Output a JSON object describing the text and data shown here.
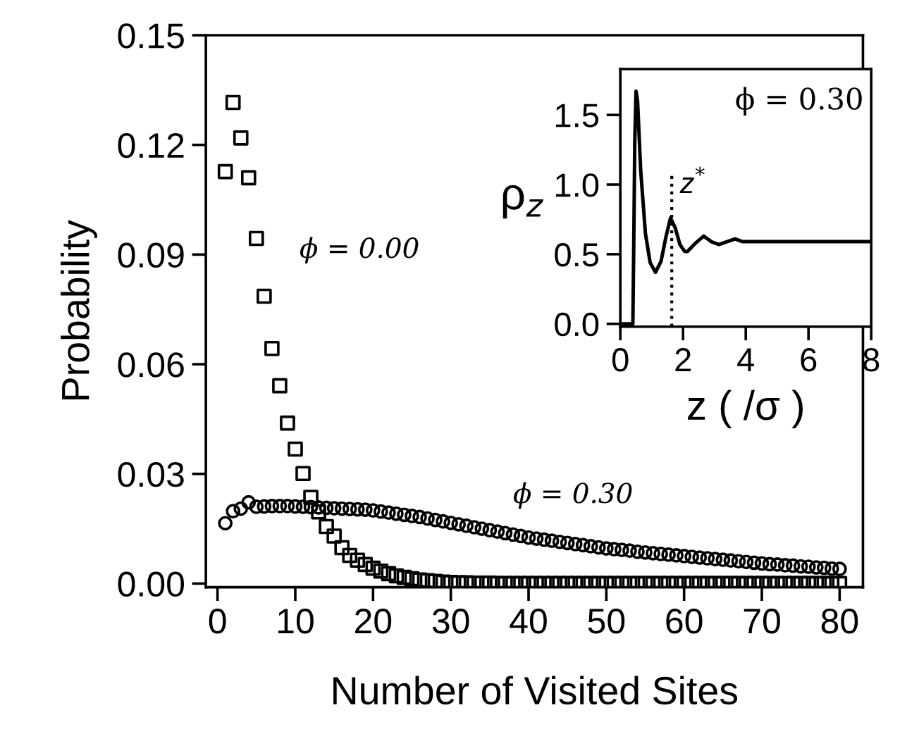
{
  "chart_data": [
    {
      "type": "scatter",
      "xlabel": "Number of Visited Sites",
      "ylabel": "Probability",
      "xlim": [
        -1.5,
        83
      ],
      "xticks": [
        0,
        10,
        20,
        30,
        40,
        50,
        60,
        70,
        80
      ],
      "ylim": [
        -0.001,
        0.15
      ],
      "yticks": [
        {
          "value": 0,
          "label": "0.00"
        },
        {
          "value": 0.03,
          "label": "0.03"
        },
        {
          "value": 0.06,
          "label": "0.06"
        },
        {
          "value": 0.09,
          "label": "0.09"
        },
        {
          "value": 0.12,
          "label": "0.12"
        },
        {
          "value": 0.15,
          "label": "0.15"
        }
      ],
      "grid": false,
      "legend": false,
      "x": [
        1,
        2,
        3,
        4,
        5,
        6,
        7,
        8,
        9,
        10,
        11,
        12,
        13,
        14,
        15,
        16,
        17,
        18,
        19,
        20,
        21,
        22,
        23,
        24,
        25,
        26,
        27,
        28,
        29,
        30,
        31,
        32,
        33,
        34,
        35,
        36,
        37,
        38,
        39,
        40,
        41,
        42,
        43,
        44,
        45,
        46,
        47,
        48,
        49,
        50,
        51,
        52,
        53,
        54,
        55,
        56,
        57,
        58,
        59,
        60,
        61,
        62,
        63,
        64,
        65,
        66,
        67,
        68,
        69,
        70,
        71,
        72,
        73,
        74,
        75,
        76,
        77,
        78,
        79,
        80
      ],
      "series": [
        {
          "name": "ϕ = 0.00",
          "color": "#000000",
          "marker": "square",
          "values": [
            0.1127,
            0.1316,
            0.1219,
            0.111,
            0.0944,
            0.0786,
            0.0643,
            0.0541,
            0.0439,
            0.0368,
            0.0301,
            0.0236,
            0.0196,
            0.0156,
            0.013,
            0.0098,
            0.0077,
            0.0064,
            0.0052,
            0.0042,
            0.0034,
            0.0027,
            0.0021,
            0.0017,
            0.0013,
            0.001,
            0.0008,
            0.0006,
            0.0004,
            0.0003,
            0.0002,
            0.0002,
            0.0001,
            0.0001,
            0.0001,
            0,
            0,
            0,
            0,
            0,
            0,
            0,
            0,
            0,
            0,
            0,
            0,
            0,
            0,
            0,
            0,
            0,
            0,
            0,
            0,
            0,
            0,
            0,
            0,
            0,
            0,
            0,
            0,
            0,
            0,
            0,
            0,
            0,
            0,
            0,
            0,
            0,
            0,
            0,
            0,
            0,
            0,
            0,
            0,
            0
          ]
        },
        {
          "name": "ϕ = 0.30",
          "color": "#000000",
          "marker": "circle",
          "values": [
            0.0165,
            0.0198,
            0.0205,
            0.0222,
            0.021,
            0.0211,
            0.0212,
            0.0212,
            0.0212,
            0.0211,
            0.021,
            0.0209,
            0.0208,
            0.0207,
            0.0206,
            0.0205,
            0.0204,
            0.0203,
            0.0202,
            0.02,
            0.0197,
            0.0194,
            0.0191,
            0.0188,
            0.0185,
            0.0182,
            0.0178,
            0.0174,
            0.017,
            0.0166,
            0.0162,
            0.0158,
            0.0154,
            0.015,
            0.0146,
            0.0142,
            0.0138,
            0.0134,
            0.013,
            0.0126,
            0.0123,
            0.012,
            0.0117,
            0.0114,
            0.0111,
            0.0108,
            0.0105,
            0.0102,
            0.0099,
            0.0096,
            0.0094,
            0.0092,
            0.009,
            0.0087,
            0.0085,
            0.0083,
            0.0081,
            0.0079,
            0.0077,
            0.0075,
            0.0073,
            0.0071,
            0.0069,
            0.0067,
            0.0065,
            0.0063,
            0.0061,
            0.0059,
            0.0057,
            0.0055,
            0.0053,
            0.0052,
            0.005,
            0.0049,
            0.0047,
            0.0046,
            0.0044,
            0.0043,
            0.0041,
            0.004
          ]
        }
      ]
    },
    {
      "type": "line",
      "xlabel": "z ( /σ )",
      "ylabel": "ρ$_{z}$",
      "xlim": [
        0,
        8
      ],
      "xticks": [
        0,
        2,
        4,
        6,
        8
      ],
      "ylim": [
        -0.02,
        1.83
      ],
      "yticks": [
        {
          "value": 0,
          "label": "0.0"
        },
        {
          "value": 0.5,
          "label": "0.5"
        },
        {
          "value": 1.0,
          "label": "1.0"
        },
        {
          "value": 1.5,
          "label": "1.5"
        }
      ],
      "grid": false,
      "legend": false,
      "line_style": "solid",
      "marker": "none",
      "annotations": [
        "ϕ = 0.30"
      ],
      "ref_lines": [
        {
          "axis": "x",
          "value": 1.64,
          "label": "z$^{*}$",
          "line_style": "dotted",
          "color": "#000000"
        }
      ],
      "series": [
        {
          "color": "#000000",
          "x": [
            0.1,
            0.4,
            0.43,
            0.46,
            0.5,
            0.55,
            0.65,
            0.8,
            0.95,
            1.12,
            1.3,
            1.45,
            1.6,
            1.75,
            1.9,
            2.05,
            2.14,
            2.4,
            2.66,
            2.9,
            3.14,
            3.4,
            3.66,
            3.9,
            4.2,
            5,
            6,
            7,
            8
          ],
          "values": [
            0,
            0,
            0.6,
            1.3,
            1.67,
            1.6,
            1.1,
            0.65,
            0.44,
            0.37,
            0.45,
            0.62,
            0.76,
            0.69,
            0.57,
            0.52,
            0.52,
            0.58,
            0.63,
            0.59,
            0.57,
            0.59,
            0.61,
            0.59,
            0.59,
            0.59,
            0.59,
            0.59,
            0.59
          ]
        }
      ]
    }
  ]
}
